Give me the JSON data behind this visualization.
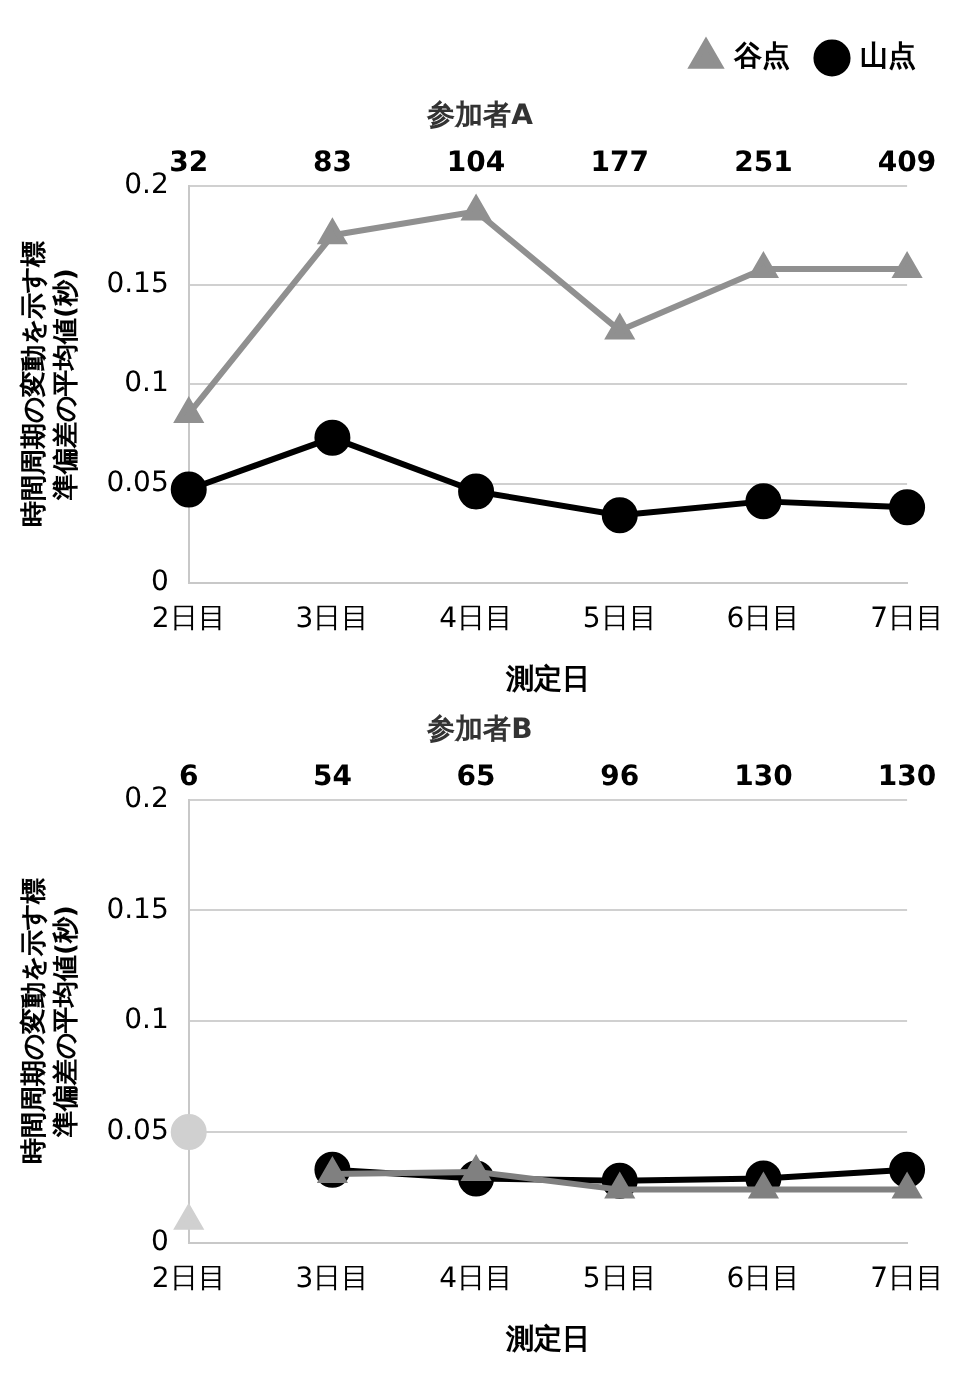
{
  "chart_data": [
    {
      "type": "line",
      "title": "参加者A",
      "xlabel": "測定日",
      "ylabel": "時間周期の変動を示す標準偏差の平均値(秒)",
      "categories": [
        "2日目",
        "3日目",
        "4日目",
        "5日目",
        "6日目",
        "7日目"
      ],
      "series": [
        {
          "name": "谷点",
          "color": "#909090",
          "marker": "triangle",
          "values": [
            0.085,
            0.175,
            0.187,
            0.127,
            0.158,
            0.158
          ]
        },
        {
          "name": "山点",
          "color": "#000000",
          "marker": "circle",
          "values": [
            0.047,
            0.073,
            0.046,
            0.034,
            0.041,
            0.038
          ]
        }
      ],
      "annotations": [
        "32",
        "83",
        "104",
        "177",
        "251",
        "409"
      ],
      "ylim": [
        0,
        0.2
      ],
      "yticks": [
        0,
        0.05,
        0.1,
        0.15,
        0.2
      ],
      "grid": "y",
      "legend": "top right"
    },
    {
      "type": "line",
      "title": "参加者B",
      "xlabel": "測定日",
      "ylabel": "時間周期の変動を示す標準偏差の平均値(秒)",
      "categories": [
        "2日目",
        "3日目",
        "4日目",
        "5日目",
        "6日目",
        "7日目"
      ],
      "series": [
        {
          "color": "#808080",
          "marker": "triangle",
          "values": [
            null,
            0.031,
            0.032,
            0.024,
            0.024,
            0.024
          ]
        },
        {
          "color": "#000000",
          "marker": "circle",
          "values": [
            null,
            0.033,
            0.029,
            0.028,
            0.029,
            0.033
          ]
        },
        {
          "type": "scatter",
          "color": "#d0d0d0",
          "marker": "triangle",
          "x": [
            "2日目"
          ],
          "values": [
            0.01
          ]
        },
        {
          "type": "scatter",
          "color": "#d0d0d0",
          "marker": "circle",
          "x": [
            "2日目"
          ],
          "values": [
            0.05
          ]
        }
      ],
      "annotations": [
        "6",
        "54",
        "65",
        "96",
        "130",
        "130"
      ],
      "ylim": [
        0,
        0.2
      ],
      "yticks": [
        0,
        0.05,
        0.1,
        0.15,
        0.2
      ],
      "grid": "y"
    }
  ]
}
